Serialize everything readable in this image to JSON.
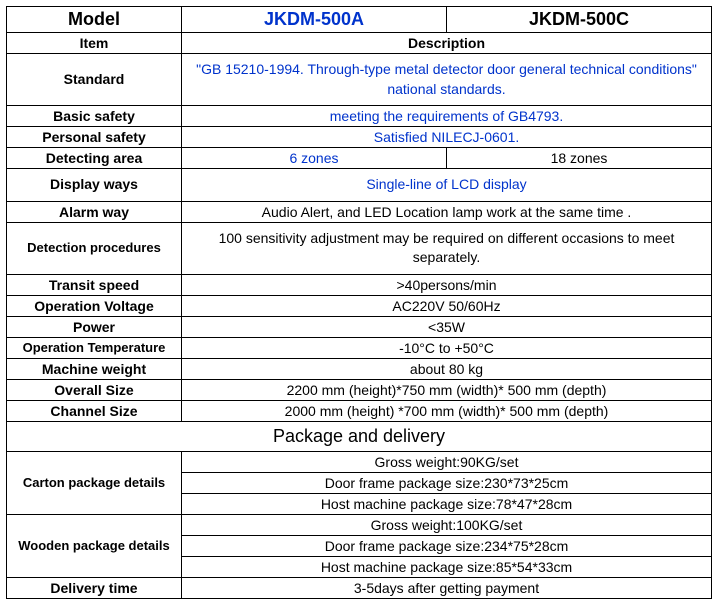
{
  "header": {
    "model_label": "Model",
    "model_a": "JKDM-500A",
    "model_c": "JKDM-500C"
  },
  "rows": {
    "item": {
      "label": "Item",
      "value": "Description"
    },
    "standard": {
      "label": "Standard",
      "value": "\"GB 15210-1994. Through-type metal detector door general technical conditions\" national standards."
    },
    "basic_safety": {
      "label": "Basic safety",
      "value": "meeting the requirements of GB4793."
    },
    "personal_safety": {
      "label": "Personal safety",
      "value": "Satisfied NILECJ-0601."
    },
    "detecting_area": {
      "label": "Detecting area",
      "value_a": "6 zones",
      "value_c": "18 zones"
    },
    "display_ways": {
      "label": "Display ways",
      "value": "Single-line of LCD display"
    },
    "alarm_way": {
      "label": "Alarm way",
      "value": "Audio Alert, and LED Location lamp work at the same time ."
    },
    "detection_procedures": {
      "label": "Detection procedures",
      "value": "100 sensitivity adjustment may be required on different occasions to meet separately."
    },
    "transit_speed": {
      "label": "Transit speed",
      "value": ">40persons/min"
    },
    "operation_voltage": {
      "label": "Operation Voltage",
      "value": "AC220V 50/60Hz"
    },
    "power": {
      "label": "Power",
      "value": "<35W"
    },
    "operation_temperature": {
      "label": "Operation Temperature",
      "value": "-10°C to +50°C"
    },
    "machine_weight": {
      "label": "Machine weight",
      "value": "about 80 kg"
    },
    "overall_size": {
      "label": "Overall Size",
      "value": "2200 mm (height)*750 mm (width)* 500 mm (depth)"
    },
    "channel_size": {
      "label": "Channel Size",
      "value": "2000 mm (height) *700 mm (width)* 500 mm (depth)"
    }
  },
  "section_package": "Package and delivery",
  "package": {
    "carton": {
      "label": "Carton package details",
      "l1": "Gross weight:90KG/set",
      "l2": "Door frame package size:230*73*25cm",
      "l3": "Host machine package size:78*47*28cm"
    },
    "wooden": {
      "label": "Wooden package details",
      "l1": "Gross weight:100KG/set",
      "l2": "Door frame package size:234*75*28cm",
      "l3": "Host machine package size:85*54*33cm"
    },
    "delivery": {
      "label": "Delivery time",
      "value": "3-5days after getting payment"
    }
  },
  "style": {
    "blue": "#0033cc",
    "black": "#000000",
    "border": "#000000",
    "bg": "#ffffff",
    "font_family": "Arial, sans-serif",
    "header_fontsize": 18,
    "label_fontsize": 14,
    "cell_fontsize": 14
  }
}
